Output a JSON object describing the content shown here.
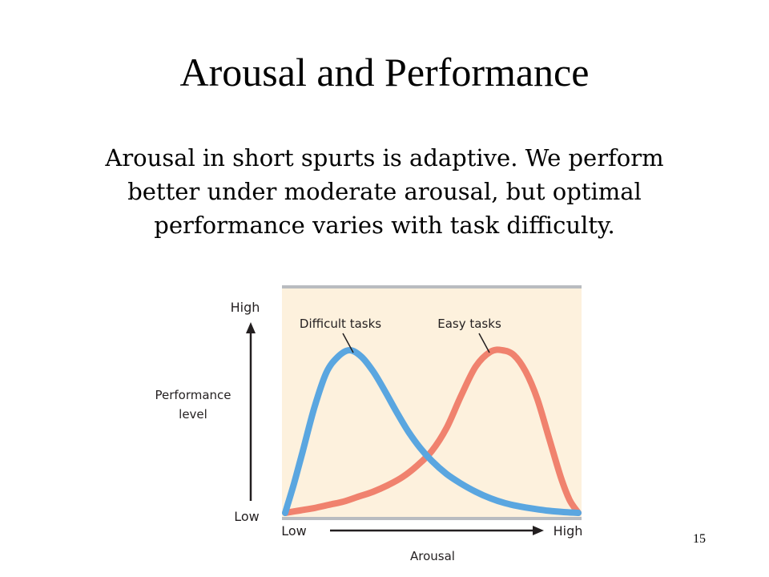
{
  "slide": {
    "title": "Arousal and Performance",
    "body": "Arousal in short spurts is adaptive. We perform better under moderate arousal, but optimal performance varies with task difficulty.",
    "page_number": "15"
  },
  "chart_data": {
    "type": "line",
    "title": "",
    "xlabel": "Arousal",
    "ylabel": "Performance level",
    "x_tick_labels": [
      "Low",
      "High"
    ],
    "y_tick_labels": [
      "Low",
      "High"
    ],
    "xlim": [
      0,
      1
    ],
    "ylim": [
      0,
      1
    ],
    "grid": false,
    "legend": "none",
    "background_color": "#fdf1dd",
    "series": [
      {
        "name": "Difficult tasks",
        "color": "#5aa6e0",
        "x": [
          0,
          0.03,
          0.06,
          0.1,
          0.14,
          0.18,
          0.22,
          0.26,
          0.3,
          0.34,
          0.38,
          0.42,
          0.46,
          0.5,
          0.55,
          0.6,
          0.65,
          0.7,
          0.75,
          0.8,
          0.85,
          0.9,
          0.95,
          1
        ],
        "y": [
          0,
          0.18,
          0.38,
          0.65,
          0.86,
          0.96,
          1.0,
          0.96,
          0.87,
          0.75,
          0.62,
          0.5,
          0.4,
          0.32,
          0.24,
          0.18,
          0.13,
          0.09,
          0.06,
          0.04,
          0.025,
          0.013,
          0.005,
          0
        ]
      },
      {
        "name": "Easy tasks",
        "color": "#f0826e",
        "x": [
          0,
          0.05,
          0.1,
          0.15,
          0.2,
          0.25,
          0.3,
          0.35,
          0.4,
          0.45,
          0.5,
          0.55,
          0.6,
          0.65,
          0.7,
          0.74,
          0.78,
          0.82,
          0.86,
          0.9,
          0.94,
          0.97,
          1
        ],
        "y": [
          0,
          0.015,
          0.03,
          0.05,
          0.07,
          0.1,
          0.13,
          0.17,
          0.22,
          0.29,
          0.38,
          0.52,
          0.72,
          0.9,
          0.99,
          1.0,
          0.97,
          0.87,
          0.7,
          0.46,
          0.22,
          0.08,
          0
        ]
      }
    ],
    "annotations": [
      "Difficult tasks",
      "Easy tasks"
    ]
  }
}
